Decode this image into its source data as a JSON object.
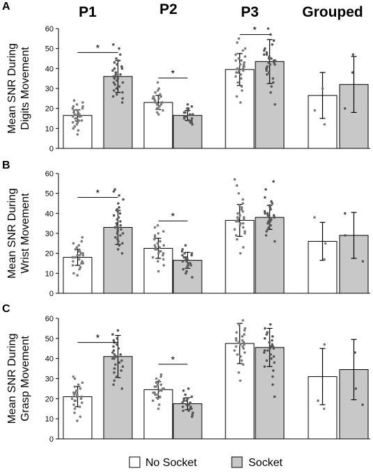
{
  "headers": [
    "P1",
    "P2",
    "P3",
    "Grouped"
  ],
  "legend": {
    "no_socket": "No Socket",
    "socket": "Socket",
    "no_socket_color": "#ffffff",
    "socket_color": "#c8c8c8"
  },
  "chart_data": [
    {
      "panel": "A",
      "type": "bar",
      "ylabel": [
        "Mean SNR During",
        "Digits Movement"
      ],
      "ylim": [
        0,
        60
      ],
      "yticks": [
        "0",
        "10",
        "20",
        "30",
        "40",
        "50",
        "60"
      ],
      "categories": [
        "P1",
        "P2",
        "P3",
        "Grouped"
      ],
      "series": [
        {
          "name": "No Socket",
          "values": [
            16.5,
            23,
            39.5,
            26.5
          ],
          "errors": [
            2.8,
            3.5,
            8,
            11.5
          ],
          "points": [
            [
              7,
              9,
              10,
              11,
              12,
              13,
              13,
              14,
              14,
              15,
              15,
              16,
              16,
              16,
              17,
              17,
              17,
              18,
              18,
              19,
              19,
              20,
              20,
              21,
              21,
              22,
              23,
              24
            ],
            [
              17,
              18,
              19,
              20,
              20,
              21,
              21,
              22,
              22,
              22,
              23,
              23,
              23,
              24,
              24,
              25,
              25,
              25,
              26,
              26,
              27,
              28,
              29,
              30,
              33
            ],
            [
              23,
              26,
              29,
              31,
              33,
              35,
              36,
              37,
              38,
              38,
              39,
              39,
              40,
              40,
              41,
              41,
              42,
              42,
              43,
              44,
              44,
              45,
              46,
              47,
              49,
              50,
              53,
              55
            ],
            [
              12,
              19,
              30
            ]
          ]
        },
        {
          "name": "Socket",
          "values": [
            36,
            16.5,
            43.5,
            32
          ],
          "errors": [
            8,
            2.5,
            11,
            14
          ],
          "points": [
            [
              23,
              25,
              26,
              27,
              28,
              29,
              30,
              31,
              31,
              32,
              33,
              33,
              34,
              35,
              35,
              36,
              36,
              37,
              37,
              38,
              39,
              40,
              40,
              41,
              42,
              43,
              44,
              45,
              47,
              50,
              52
            ],
            [
              12,
              13,
              13,
              14,
              14,
              15,
              15,
              16,
              16,
              16,
              17,
              17,
              17,
              18,
              18,
              19,
              19,
              20,
              20,
              21,
              22
            ],
            [
              22,
              28,
              31,
              33,
              35,
              37,
              38,
              39,
              40,
              40,
              41,
              42,
              42,
              43,
              43,
              44,
              44,
              45,
              45,
              46,
              47,
              47,
              48,
              49,
              50,
              52,
              54,
              57,
              60
            ],
            [
              20,
              38,
              47
            ]
          ]
        }
      ],
      "significance": [
        {
          "category": "P1",
          "label": "*"
        },
        {
          "category": "P2",
          "label": "*"
        },
        {
          "category": "P3",
          "label": "*"
        }
      ]
    },
    {
      "panel": "B",
      "type": "bar",
      "ylabel": [
        "Mean SNR During",
        "Wrist Movement"
      ],
      "ylim": [
        0,
        60
      ],
      "yticks": [
        "0",
        "10",
        "20",
        "30",
        "40",
        "50",
        "60"
      ],
      "categories": [
        "P1",
        "P2",
        "P3",
        "Grouped"
      ],
      "series": [
        {
          "name": "No Socket",
          "values": [
            18,
            22.5,
            36.5,
            26
          ],
          "errors": [
            4,
            5,
            8,
            9.5
          ],
          "points": [
            [
              9,
              10,
              12,
              13,
              14,
              15,
              15,
              16,
              16,
              17,
              17,
              18,
              18,
              18,
              19,
              19,
              19,
              20,
              20,
              21,
              21,
              22,
              23,
              24,
              25,
              26,
              28
            ],
            [
              11,
              14,
              16,
              17,
              18,
              19,
              20,
              20,
              21,
              21,
              22,
              22,
              23,
              23,
              24,
              24,
              25,
              26,
              27,
              28,
              29,
              30,
              31,
              33,
              34
            ],
            [
              20,
              23,
              27,
              29,
              30,
              31,
              32,
              33,
              34,
              35,
              35,
              36,
              36,
              37,
              37,
              38,
              38,
              39,
              40,
              41,
              42,
              43,
              44,
              45,
              47,
              50,
              54,
              57
            ],
            [
              17,
              25,
              38
            ]
          ]
        },
        {
          "name": "Socket",
          "values": [
            33,
            16.5,
            38,
            29
          ],
          "errors": [
            8.5,
            4,
            6,
            11.5
          ],
          "points": [
            [
              20,
              22,
              24,
              25,
              26,
              27,
              28,
              29,
              30,
              30,
              31,
              32,
              32,
              33,
              33,
              34,
              34,
              35,
              36,
              37,
              38,
              39,
              40,
              41,
              42,
              43,
              45,
              47,
              49,
              51,
              52
            ],
            [
              8,
              10,
              11,
              12,
              13,
              14,
              14,
              15,
              15,
              16,
              16,
              17,
              17,
              18,
              18,
              19,
              19,
              20,
              20,
              21,
              22,
              24
            ],
            [
              26,
              29,
              31,
              32,
              33,
              34,
              35,
              35,
              36,
              36,
              37,
              37,
              38,
              38,
              39,
              39,
              40,
              40,
              41,
              42,
              43,
              44,
              45,
              46,
              48,
              52,
              56
            ],
            [
              16,
              29,
              40
            ]
          ]
        }
      ],
      "significance": [
        {
          "category": "P1",
          "label": "*"
        },
        {
          "category": "P2",
          "label": "*"
        }
      ]
    },
    {
      "panel": "C",
      "type": "bar",
      "ylabel": [
        "Mean SNR During",
        "Grasp Movement"
      ],
      "ylim": [
        0,
        60
      ],
      "yticks": [
        "0",
        "10",
        "20",
        "30",
        "40",
        "50",
        "60"
      ],
      "categories": [
        "P1",
        "P2",
        "P3",
        "Grouped"
      ],
      "series": [
        {
          "name": "No Socket",
          "values": [
            21,
            24.5,
            47.5,
            31
          ],
          "errors": [
            5,
            4,
            10,
            14
          ],
          "points": [
            [
              9,
              11,
              13,
              15,
              16,
              17,
              18,
              19,
              19,
              20,
              20,
              21,
              21,
              22,
              22,
              23,
              23,
              24,
              24,
              25,
              26,
              27,
              28,
              30,
              31
            ],
            [
              15,
              17,
              19,
              20,
              21,
              22,
              22,
              23,
              23,
              24,
              24,
              25,
              25,
              26,
              26,
              27,
              27,
              28,
              29,
              30,
              31,
              32
            ],
            [
              29,
              33,
              37,
              39,
              41,
              42,
              43,
              44,
              45,
              46,
              46,
              47,
              47,
              48,
              48,
              49,
              49,
              50,
              51,
              52,
              53,
              54,
              55,
              57,
              59
            ],
            [
              15,
              19,
              47
            ]
          ]
        },
        {
          "name": "Socket",
          "values": [
            41,
            17.5,
            45.5,
            34.5
          ],
          "errors": [
            10.5,
            3,
            9.5,
            15
          ],
          "points": [
            [
              25,
              27,
              29,
              31,
              33,
              34,
              35,
              36,
              37,
              38,
              39,
              40,
              40,
              41,
              41,
              42,
              42,
              43,
              44,
              45,
              46,
              47,
              48,
              49,
              50,
              52,
              54
            ],
            [
              11,
              12,
              13,
              14,
              14,
              15,
              15,
              16,
              16,
              17,
              17,
              18,
              18,
              19,
              19,
              20,
              20,
              21,
              22,
              24,
              25
            ],
            [
              21,
              27,
              31,
              34,
              36,
              38,
              39,
              40,
              41,
              42,
              43,
              44,
              44,
              45,
              45,
              46,
              46,
              47,
              48,
              49,
              50,
              51,
              52,
              53,
              55,
              57
            ],
            [
              17,
              25,
              43
            ]
          ]
        }
      ],
      "significance": [
        {
          "category": "P1",
          "label": "*"
        },
        {
          "category": "P2",
          "label": "*"
        }
      ]
    }
  ]
}
